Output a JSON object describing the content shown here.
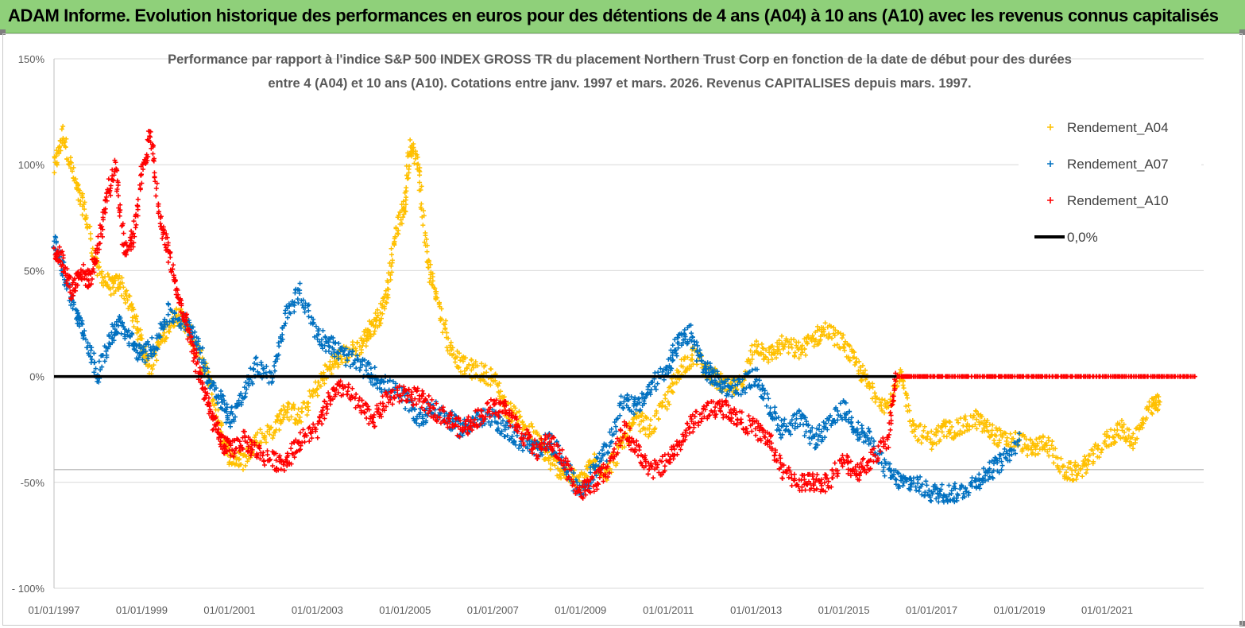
{
  "banner": {
    "title": "ADAM Informe. Evolution historique des performances en euros pour des détentions de 4 ans (A04) à 10 ans (A10) avec les revenus connus capitalisés",
    "color": "#8fd07a"
  },
  "chart_data": {
    "type": "scatter",
    "title_line1": "Performance par rapport à l'indice S&P 500 INDEX GROSS TR  du placement Northern Trust Corp en fonction de la date de début pour des durées",
    "title_line2": "entre 4 (A04) et 10 ans (A10). Cotations entre janv. 1997 et mars. 2026. Revenus CAPITALISES depuis mars. 1997.",
    "x_domain": [
      1997.0,
      2023.2
    ],
    "ylim": [
      -100,
      150
    ],
    "y_ticks": [
      {
        "value": 150,
        "label": "150%"
      },
      {
        "value": 100,
        "label": "100%"
      },
      {
        "value": 50,
        "label": "50%"
      },
      {
        "value": 0,
        "label": "0%"
      },
      {
        "value": -50,
        "label": "-50%"
      },
      {
        "value": -100,
        "label": "- 100%"
      }
    ],
    "x_ticks": [
      {
        "value": 1997,
        "label": "01/01/1997"
      },
      {
        "value": 1999,
        "label": "01/01/1999"
      },
      {
        "value": 2001,
        "label": "01/01/2001"
      },
      {
        "value": 2003,
        "label": "01/01/2003"
      },
      {
        "value": 2005,
        "label": "01/01/2005"
      },
      {
        "value": 2007,
        "label": "01/01/2007"
      },
      {
        "value": 2009,
        "label": "01/01/2009"
      },
      {
        "value": 2011,
        "label": "01/01/2011"
      },
      {
        "value": 2013,
        "label": "01/01/2013"
      },
      {
        "value": 2015,
        "label": "01/01/2015"
      },
      {
        "value": 2017,
        "label": "01/01/2017"
      },
      {
        "value": 2019,
        "label": "01/01/2019"
      },
      {
        "value": 2021,
        "label": "01/01/2021"
      }
    ],
    "reference_line": {
      "name": "0,0%",
      "value": 0,
      "color": "#000000"
    },
    "extra_hline": {
      "value": -44,
      "color": "#b0b0b0"
    },
    "legend_position": "top-right",
    "series": [
      {
        "name": "Rendement_A04",
        "color": "#ffc000",
        "x": [
          1997.0,
          1997.2,
          1997.5,
          1997.7,
          1998.0,
          1998.3,
          1998.5,
          1998.8,
          1999.0,
          1999.2,
          1999.5,
          1999.8,
          2000.0,
          2000.2,
          2000.5,
          2000.8,
          2001.0,
          2001.3,
          2001.6,
          2002.0,
          2002.3,
          2002.6,
          2003.0,
          2003.3,
          2003.6,
          2004.0,
          2004.2,
          2004.4,
          2004.6,
          2004.8,
          2005.0,
          2005.1,
          2005.3,
          2005.5,
          2005.7,
          2006.0,
          2006.3,
          2006.6,
          2007.0,
          2007.3,
          2007.6,
          2008.0,
          2008.3,
          2008.6,
          2009.0,
          2009.3,
          2009.6,
          2010.0,
          2010.3,
          2010.6,
          2011.0,
          2011.3,
          2011.6,
          2012.0,
          2012.3,
          2012.6,
          2013.0,
          2013.3,
          2013.6,
          2014.0,
          2014.3,
          2014.6,
          2015.0,
          2015.3,
          2015.6,
          2016.0,
          2016.3,
          2016.6,
          2017.0,
          2017.3,
          2017.6,
          2018.0,
          2018.3,
          2018.6,
          2019.0,
          2019.3,
          2019.6,
          2020.0,
          2020.3,
          2020.6,
          2021.0,
          2021.3,
          2021.6,
          2022.0,
          2022.2
        ],
        "y": [
          98,
          115,
          90,
          78,
          50,
          42,
          45,
          30,
          15,
          5,
          20,
          30,
          25,
          15,
          0,
          -25,
          -38,
          -40,
          -30,
          -25,
          -15,
          -20,
          -5,
          5,
          10,
          15,
          22,
          28,
          40,
          70,
          80,
          110,
          100,
          55,
          40,
          15,
          5,
          3,
          0,
          -15,
          -20,
          -30,
          -40,
          -45,
          -50,
          -40,
          -45,
          -30,
          -20,
          -25,
          -10,
          5,
          10,
          0,
          -5,
          -5,
          15,
          10,
          15,
          12,
          18,
          22,
          15,
          5,
          -5,
          -15,
          0,
          -25,
          -30,
          -25,
          -25,
          -20,
          -25,
          -30,
          -30,
          -35,
          -30,
          -45,
          -45,
          -40,
          -30,
          -25,
          -30,
          -15,
          -12
        ]
      },
      {
        "name": "Rendement_A07",
        "color": "#0070c0",
        "x": [
          1997.0,
          1997.2,
          1997.5,
          1997.7,
          1998.0,
          1998.3,
          1998.5,
          1998.8,
          1999.0,
          1999.3,
          1999.6,
          2000.0,
          2000.2,
          2000.5,
          2000.8,
          2001.0,
          2001.3,
          2001.6,
          2002.0,
          2002.3,
          2002.6,
          2003.0,
          2003.3,
          2003.6,
          2004.0,
          2004.3,
          2004.6,
          2005.0,
          2005.3,
          2005.6,
          2006.0,
          2006.3,
          2006.6,
          2007.0,
          2007.3,
          2007.6,
          2008.0,
          2008.3,
          2008.6,
          2009.0,
          2009.3,
          2009.6,
          2010.0,
          2010.3,
          2010.6,
          2011.0,
          2011.2,
          2011.5,
          2011.8,
          2012.0,
          2012.3,
          2012.6,
          2013.0,
          2013.3,
          2013.6,
          2014.0,
          2014.3,
          2014.6,
          2015.0,
          2015.3,
          2015.6,
          2016.0,
          2016.3,
          2016.6,
          2017.0,
          2017.3,
          2017.6,
          2018.0,
          2018.3,
          2018.6,
          2019.0
        ],
        "y": [
          65,
          50,
          30,
          20,
          0,
          20,
          25,
          15,
          10,
          15,
          30,
          25,
          20,
          0,
          -10,
          -20,
          -10,
          5,
          0,
          30,
          40,
          20,
          15,
          10,
          5,
          0,
          -5,
          -10,
          -20,
          -15,
          -20,
          -25,
          -20,
          -20,
          -25,
          -30,
          -35,
          -30,
          -40,
          -55,
          -45,
          -35,
          -10,
          -15,
          -5,
          5,
          15,
          20,
          5,
          0,
          -5,
          -5,
          0,
          -15,
          -25,
          -20,
          -30,
          -25,
          -15,
          -25,
          -30,
          -45,
          -50,
          -50,
          -55,
          -55,
          -55,
          -50,
          -45,
          -40,
          -30
        ]
      },
      {
        "name": "Rendement_A10",
        "color": "#ff0000",
        "x": [
          1997.0,
          1997.2,
          1997.4,
          1997.6,
          1997.8,
          1998.0,
          1998.2,
          1998.4,
          1998.6,
          1998.8,
          1999.0,
          1999.2,
          1999.4,
          1999.6,
          1999.8,
          2000.0,
          2000.2,
          2000.4,
          2000.6,
          2000.8,
          2001.0,
          2001.3,
          2001.6,
          2002.0,
          2002.3,
          2002.6,
          2003.0,
          2003.3,
          2003.6,
          2004.0,
          2004.3,
          2004.6,
          2005.0,
          2005.3,
          2005.6,
          2006.0,
          2006.3,
          2006.6,
          2007.0,
          2007.3,
          2007.6,
          2008.0,
          2008.3,
          2008.6,
          2009.0,
          2009.3,
          2009.6,
          2010.0,
          2010.3,
          2010.6,
          2011.0,
          2011.3,
          2011.6,
          2012.0,
          2012.3,
          2012.6,
          2013.0,
          2013.3,
          2013.6,
          2014.0,
          2014.3,
          2014.6,
          2015.0,
          2015.3,
          2015.6,
          2016.0,
          2016.2,
          2016.5,
          2017.0,
          2017.5,
          2018.0,
          2018.5,
          2019.0,
          2019.5,
          2020.0,
          2020.5,
          2021.0,
          2021.5,
          2022.0,
          2022.5,
          2023.0
        ],
        "y": [
          60,
          55,
          40,
          50,
          45,
          60,
          85,
          100,
          60,
          65,
          95,
          115,
          75,
          60,
          40,
          25,
          10,
          -5,
          -20,
          -30,
          -35,
          -30,
          -35,
          -40,
          -40,
          -30,
          -25,
          -10,
          -5,
          -15,
          -20,
          -10,
          -8,
          -10,
          -15,
          -20,
          -25,
          -20,
          -15,
          -15,
          -25,
          -35,
          -30,
          -40,
          -55,
          -50,
          -45,
          -25,
          -35,
          -45,
          -40,
          -30,
          -20,
          -15,
          -15,
          -20,
          -25,
          -30,
          -45,
          -50,
          -50,
          -50,
          -40,
          -45,
          -40,
          -30,
          0,
          0,
          0,
          0,
          0,
          0,
          0,
          0,
          0,
          0,
          0,
          0,
          0,
          0,
          0
        ]
      }
    ]
  }
}
